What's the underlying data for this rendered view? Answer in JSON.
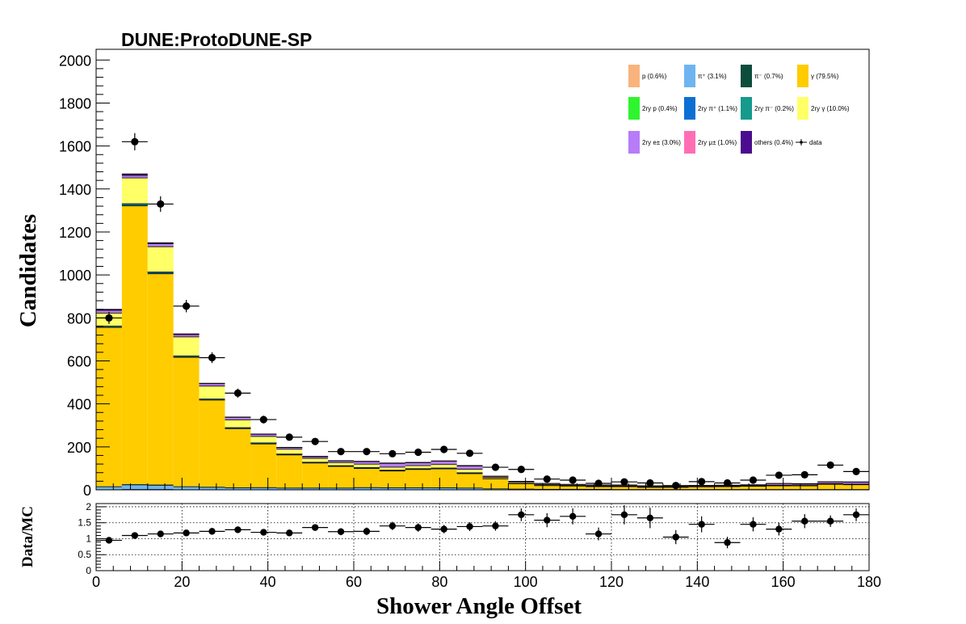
{
  "title": "DUNE:ProtoDUNE-SP",
  "chart_data": {
    "type": "bar",
    "stacked": true,
    "xlabel": "Shower Angle Offset",
    "ylabel": "Candidates",
    "ratio_ylabel": "Data/MC",
    "xlim": [
      0,
      180
    ],
    "ylim": [
      0,
      2050
    ],
    "ratio_ylim": [
      0,
      2.1
    ],
    "bin_width": 6,
    "x_ticks": [
      0,
      20,
      40,
      60,
      80,
      100,
      120,
      140,
      160,
      180
    ],
    "y_ticks": [
      0,
      200,
      400,
      600,
      800,
      1000,
      1200,
      1400,
      1600,
      1800,
      2000
    ],
    "ratio_ticks": [
      "0",
      "0.5",
      "1",
      "1.5",
      "2"
    ],
    "ratio_tick_values": [
      0,
      0.5,
      1,
      1.5,
      2
    ],
    "grid": "ratio panel only",
    "legend_position": "top-right",
    "bin_centers": [
      3,
      9,
      15,
      21,
      27,
      33,
      39,
      45,
      51,
      57,
      63,
      69,
      75,
      81,
      87,
      93,
      99,
      105,
      111,
      117,
      123,
      129,
      135,
      141,
      147,
      153,
      159,
      165,
      171,
      177
    ],
    "series": [
      {
        "name": "p (0.6%)",
        "color": "#f9b37c",
        "values": [
          2,
          3,
          3,
          2,
          2,
          1,
          1,
          1,
          1,
          1,
          1,
          1,
          1,
          1,
          1,
          0,
          0,
          0,
          0,
          0,
          0,
          0,
          0,
          0,
          0,
          0,
          0,
          0,
          0,
          0
        ]
      },
      {
        "name": "π⁺ (3.1%)",
        "color": "#6eb4f0",
        "values": [
          12,
          20,
          18,
          12,
          10,
          8,
          9,
          7,
          7,
          7,
          9,
          8,
          8,
          8,
          7,
          5,
          4,
          3,
          3,
          3,
          2,
          2,
          2,
          2,
          2,
          2,
          2,
          2,
          2,
          2
        ]
      },
      {
        "name": "π⁻ (0.7%)",
        "color": "#0d4d3c",
        "values": [
          2,
          3,
          3,
          2,
          2,
          2,
          2,
          2,
          2,
          2,
          2,
          2,
          2,
          2,
          2,
          1,
          1,
          1,
          1,
          1,
          1,
          1,
          1,
          1,
          1,
          1,
          1,
          1,
          1,
          1
        ]
      },
      {
        "name": "γ (79.5%)",
        "color": "#ffcc00",
        "values": [
          741,
          1297,
          983,
          602,
          405,
          275,
          203,
          154,
          116,
          100,
          89,
          78,
          85,
          88,
          67,
          47,
          25,
          17,
          15,
          12,
          13,
          10,
          10,
          12,
          13,
          15,
          17,
          17,
          24,
          22
        ]
      },
      {
        "name": "2ry p (0.4%)",
        "color": "#2ef52e",
        "values": [
          2,
          3,
          2,
          2,
          1,
          1,
          1,
          1,
          1,
          1,
          1,
          1,
          1,
          1,
          1,
          0,
          0,
          0,
          0,
          0,
          0,
          0,
          0,
          0,
          0,
          0,
          0,
          0,
          0,
          0
        ]
      },
      {
        "name": "2ry π⁺ (1.1%)",
        "color": "#0c6fd4",
        "values": [
          4,
          6,
          5,
          4,
          3,
          3,
          3,
          2,
          2,
          2,
          2,
          2,
          2,
          2,
          2,
          1,
          1,
          1,
          1,
          1,
          1,
          1,
          1,
          1,
          1,
          1,
          1,
          1,
          1,
          1
        ]
      },
      {
        "name": "2ry π⁻ (0.2%)",
        "color": "#159a8c",
        "values": [
          1,
          1,
          1,
          1,
          1,
          1,
          1,
          1,
          1,
          1,
          1,
          1,
          1,
          1,
          1,
          0,
          0,
          0,
          0,
          0,
          0,
          0,
          0,
          0,
          0,
          0,
          0,
          0,
          0,
          0
        ]
      },
      {
        "name": "2ry γ (10.0%)",
        "color": "#ffff66",
        "values": [
          60,
          120,
          118,
          88,
          60,
          36,
          30,
          22,
          18,
          14,
          16,
          14,
          14,
          16,
          16,
          6,
          5,
          4,
          3,
          3,
          3,
          2,
          2,
          2,
          2,
          2,
          2,
          3,
          3,
          2
        ]
      },
      {
        "name": "2ry e± (3.0%)",
        "color": "#b77cf7",
        "values": [
          10,
          10,
          12,
          9,
          10,
          10,
          8,
          6,
          6,
          6,
          10,
          16,
          12,
          14,
          14,
          3,
          3,
          3,
          2,
          2,
          2,
          2,
          2,
          2,
          2,
          2,
          6,
          4,
          6,
          8
        ]
      },
      {
        "name": "2ry μ± (1.0%)",
        "color": "#ff6eb4",
        "values": [
          2,
          2,
          2,
          2,
          1,
          1,
          1,
          1,
          1,
          1,
          1,
          1,
          1,
          1,
          1,
          1,
          1,
          1,
          1,
          1,
          1,
          1,
          1,
          1,
          1,
          1,
          1,
          1,
          1,
          1
        ]
      },
      {
        "name": "others (0.4%)",
        "color": "#4a0d8f",
        "values": [
          4,
          5,
          3,
          2,
          1,
          1,
          1,
          1,
          1,
          1,
          1,
          1,
          1,
          1,
          1,
          0,
          0,
          0,
          0,
          0,
          0,
          0,
          0,
          0,
          0,
          0,
          0,
          0,
          0,
          0
        ]
      }
    ],
    "data": {
      "name": "data",
      "values": [
        800,
        1620,
        1330,
        855,
        615,
        450,
        327,
        245,
        225,
        178,
        178,
        168,
        175,
        188,
        170,
        105,
        95,
        50,
        45,
        30,
        37,
        32,
        20,
        38,
        32,
        45,
        68,
        70,
        115,
        85
      ],
      "errors": [
        28,
        40,
        36,
        29,
        25,
        21,
        18,
        16,
        15,
        13,
        13,
        13,
        13,
        14,
        13,
        10,
        10,
        7,
        7,
        5,
        6,
        6,
        4,
        6,
        6,
        7,
        8,
        8,
        11,
        9
      ]
    },
    "ratio": {
      "values": [
        0.95,
        1.1,
        1.15,
        1.18,
        1.23,
        1.28,
        1.2,
        1.18,
        1.35,
        1.22,
        1.23,
        1.4,
        1.35,
        1.3,
        1.38,
        1.4,
        1.75,
        1.58,
        1.7,
        1.15,
        1.75,
        1.65,
        1.05,
        1.45,
        0.88,
        1.45,
        1.3,
        1.55,
        1.55,
        1.75
      ],
      "errors": [
        0.05,
        0.04,
        0.05,
        0.06,
        0.07,
        0.08,
        0.09,
        0.09,
        0.1,
        0.11,
        0.12,
        0.13,
        0.13,
        0.13,
        0.14,
        0.15,
        0.2,
        0.22,
        0.25,
        0.2,
        0.3,
        0.32,
        0.22,
        0.25,
        0.18,
        0.22,
        0.2,
        0.22,
        0.18,
        0.2
      ]
    }
  }
}
